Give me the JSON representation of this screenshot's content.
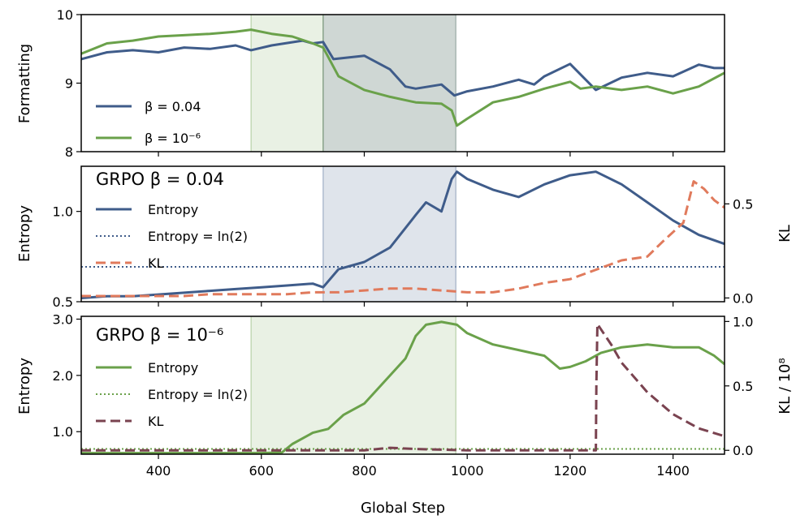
{
  "chart_data": {
    "type": "line",
    "xlabel": "Global Step",
    "xlim": [
      250,
      1500
    ],
    "xticks": [
      400,
      600,
      800,
      1000,
      1200,
      1400
    ],
    "colors": {
      "blue": "#3f5c8a",
      "green": "#6aa14a",
      "orange": "#e07a5c",
      "maroon": "#7a4350",
      "green_shade": "#6aa14a",
      "blue_shade": "#3f5c8a"
    },
    "panels": [
      {
        "id": "formatting",
        "ylabel": "Formatting",
        "ylim": [
          8,
          10
        ],
        "yticks": [
          "8",
          "9",
          "10"
        ],
        "shaded_regions": [
          {
            "x": [
              580,
              720
            ],
            "color": "green"
          },
          {
            "x": [
              720,
              978
            ],
            "color": "dark"
          }
        ],
        "legend": [
          {
            "label": "β = 0.04",
            "color": "blue",
            "style": "solid"
          },
          {
            "label": "β = 10⁻⁶",
            "color": "green",
            "style": "solid"
          }
        ],
        "series": [
          {
            "name": "β = 0.04",
            "color": "blue",
            "x": [
              250,
              300,
              350,
              400,
              450,
              500,
              550,
              580,
              620,
              680,
              700,
              720,
              740,
              800,
              850,
              880,
              900,
              950,
              975,
              1000,
              1050,
              1100,
              1130,
              1150,
              1200,
              1250,
              1300,
              1350,
              1400,
              1450,
              1480,
              1500
            ],
            "y": [
              9.35,
              9.45,
              9.48,
              9.45,
              9.52,
              9.5,
              9.55,
              9.48,
              9.55,
              9.62,
              9.58,
              9.6,
              9.35,
              9.4,
              9.2,
              8.95,
              8.92,
              8.98,
              8.82,
              8.88,
              8.95,
              9.05,
              8.98,
              9.1,
              9.28,
              8.9,
              9.08,
              9.15,
              9.1,
              9.27,
              9.22,
              9.22
            ]
          },
          {
            "name": "β = 10⁻⁶",
            "color": "green",
            "x": [
              250,
              300,
              350,
              400,
              450,
              500,
              550,
              580,
              620,
              660,
              700,
              720,
              750,
              800,
              850,
              900,
              950,
              970,
              980,
              1000,
              1050,
              1100,
              1150,
              1200,
              1220,
              1250,
              1300,
              1350,
              1400,
              1450,
              1500
            ],
            "y": [
              9.43,
              9.58,
              9.62,
              9.68,
              9.7,
              9.72,
              9.75,
              9.78,
              9.72,
              9.68,
              9.58,
              9.52,
              9.1,
              8.9,
              8.8,
              8.72,
              8.7,
              8.6,
              8.38,
              8.48,
              8.72,
              8.8,
              8.92,
              9.02,
              8.92,
              8.95,
              8.9,
              8.95,
              8.85,
              8.95,
              9.15
            ]
          }
        ]
      },
      {
        "id": "grpo_004",
        "title": "GRPO β = 0.04",
        "ylabel": "Entropy",
        "ylim": [
          0.5,
          1.25
        ],
        "yticks": [
          "0.5",
          "1.0"
        ],
        "ylabel_right": "KL",
        "ylim_right": [
          -0.02,
          0.7
        ],
        "yticks_right": [
          "0.0",
          "0.5"
        ],
        "shaded_regions": [
          {
            "x": [
              720,
              978
            ],
            "color": "blue"
          }
        ],
        "hline": {
          "y": 0.693,
          "label": "Entropy = ln(2)",
          "color": "blue"
        },
        "legend": [
          {
            "label": "Entropy",
            "color": "blue",
            "style": "solid"
          },
          {
            "label": "Entropy = ln(2)",
            "color": "blue",
            "style": "dotted"
          },
          {
            "label": "KL",
            "color": "orange",
            "style": "dashed"
          }
        ],
        "series": [
          {
            "name": "Entropy",
            "color": "blue",
            "axis": "left",
            "x": [
              250,
              300,
              350,
              400,
              450,
              500,
              550,
              600,
              650,
              700,
              720,
              750,
              800,
              850,
              900,
              920,
              950,
              970,
              980,
              1000,
              1050,
              1100,
              1150,
              1200,
              1250,
              1300,
              1350,
              1400,
              1450,
              1500
            ],
            "y": [
              0.52,
              0.53,
              0.53,
              0.54,
              0.55,
              0.56,
              0.57,
              0.58,
              0.59,
              0.6,
              0.58,
              0.68,
              0.72,
              0.8,
              0.98,
              1.05,
              1.0,
              1.18,
              1.22,
              1.18,
              1.12,
              1.08,
              1.15,
              1.2,
              1.22,
              1.15,
              1.05,
              0.95,
              0.87,
              0.82
            ]
          },
          {
            "name": "KL",
            "color": "orange",
            "axis": "right",
            "x": [
              250,
              300,
              350,
              400,
              450,
              500,
              550,
              600,
              650,
              700,
              750,
              800,
              850,
              900,
              950,
              1000,
              1050,
              1100,
              1150,
              1200,
              1250,
              1300,
              1350,
              1380,
              1400,
              1420,
              1440,
              1460,
              1480,
              1500
            ],
            "y": [
              0.01,
              0.01,
              0.01,
              0.01,
              0.01,
              0.02,
              0.02,
              0.02,
              0.02,
              0.03,
              0.03,
              0.04,
              0.05,
              0.05,
              0.04,
              0.03,
              0.03,
              0.05,
              0.08,
              0.1,
              0.15,
              0.2,
              0.22,
              0.3,
              0.35,
              0.4,
              0.62,
              0.58,
              0.52,
              0.48
            ]
          }
        ]
      },
      {
        "id": "grpo_1e6",
        "title": "GRPO β = 10⁻⁶",
        "ylabel": "Entropy",
        "ylim": [
          0.6,
          3.05
        ],
        "yticks": [
          "1.0",
          "2.0",
          "3.0"
        ],
        "ylabel_right": "KL / 10⁸",
        "ylim_right": [
          -0.03,
          1.04
        ],
        "yticks_right": [
          "0.0",
          "0.5",
          "1.0"
        ],
        "shaded_regions": [
          {
            "x": [
              580,
              978
            ],
            "color": "green"
          }
        ],
        "hline": {
          "y": 0.693,
          "label": "Entropy = ln(2)",
          "color": "green"
        },
        "legend": [
          {
            "label": "Entropy",
            "color": "green",
            "style": "solid"
          },
          {
            "label": "Entropy = ln(2)",
            "color": "green",
            "style": "dotted"
          },
          {
            "label": "KL",
            "color": "maroon",
            "style": "dashed"
          }
        ],
        "series": [
          {
            "name": "Entropy",
            "color": "green",
            "axis": "left",
            "x": [
              250,
              300,
              400,
              500,
              600,
              640,
              660,
              700,
              730,
              760,
              800,
              850,
              880,
              900,
              920,
              950,
              980,
              1000,
              1050,
              1100,
              1150,
              1180,
              1200,
              1230,
              1260,
              1300,
              1350,
              1400,
              1450,
              1480,
              1500
            ],
            "y": [
              0.62,
              0.62,
              0.62,
              0.62,
              0.62,
              0.63,
              0.78,
              0.98,
              1.05,
              1.3,
              1.5,
              2.0,
              2.3,
              2.7,
              2.9,
              2.95,
              2.9,
              2.75,
              2.55,
              2.45,
              2.35,
              2.12,
              2.15,
              2.25,
              2.4,
              2.5,
              2.55,
              2.5,
              2.5,
              2.35,
              2.2
            ]
          },
          {
            "name": "KL",
            "color": "maroon",
            "axis": "right",
            "x": [
              250,
              400,
              600,
              800,
              850,
              900,
              1000,
              1100,
              1200,
              1250,
              1251,
              1253,
              1280,
              1300,
              1350,
              1400,
              1450,
              1500
            ],
            "y": [
              0.0,
              0.0,
              0.0,
              0.0,
              0.02,
              0.01,
              0.0,
              0.0,
              0.0,
              0.0,
              0.5,
              0.98,
              0.82,
              0.68,
              0.45,
              0.28,
              0.17,
              0.11
            ]
          }
        ]
      }
    ]
  }
}
